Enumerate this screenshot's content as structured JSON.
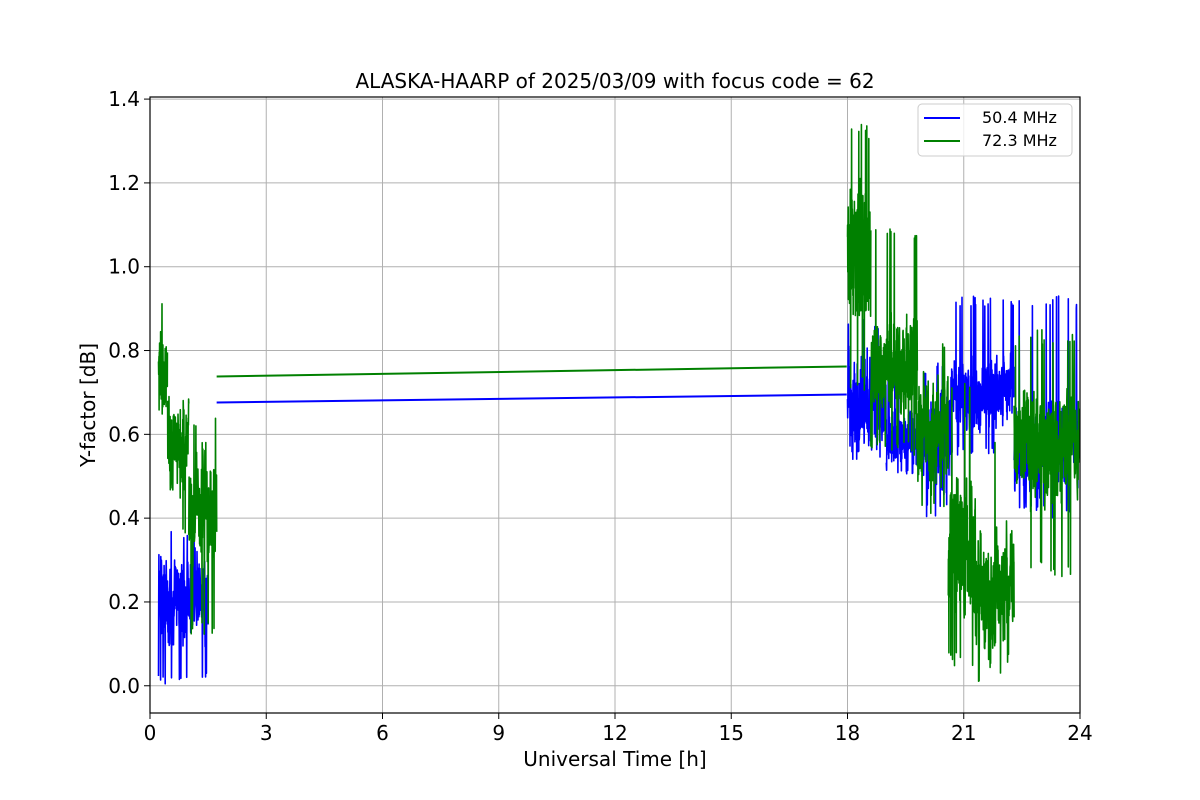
{
  "chart_data": {
    "type": "line",
    "title": "ALASKA-HAARP of 2025/03/09 with focus code = 62",
    "xlabel": "Universal Time [h]",
    "ylabel": "Y-factor [dB]",
    "xlim": [
      0,
      24
    ],
    "ylim": [
      -0.065,
      1.405
    ],
    "x_ticks": [
      0,
      3,
      6,
      9,
      12,
      15,
      18,
      21,
      24
    ],
    "x_tick_labels": [
      "0",
      "3",
      "6",
      "9",
      "12",
      "15",
      "18",
      "21",
      "24"
    ],
    "y_ticks": [
      0.0,
      0.2,
      0.4,
      0.6,
      0.8,
      1.0,
      1.2,
      1.4
    ],
    "y_tick_labels": [
      "0.0",
      "0.2",
      "0.4",
      "0.6",
      "0.8",
      "1.0",
      "1.2",
      "1.4"
    ],
    "grid": true,
    "legend_position": "top-right",
    "series": [
      {
        "name": "50.4 MHz",
        "color": "#0000ff",
        "segments": [
          {
            "x": [
              0.22,
              1.5
            ],
            "base": 0.2,
            "amp": 0.1,
            "min": 0.0,
            "max": 0.38,
            "seed": 11,
            "n": 260
          },
          {
            "x": [
              18.0,
              19.0
            ],
            "base": 0.68,
            "amp": 0.11,
            "min": 0.54,
            "max": 0.88,
            "seed": 12,
            "n": 200
          },
          {
            "x": [
              19.0,
              20.0
            ],
            "base": 0.59,
            "amp": 0.07,
            "min": 0.5,
            "max": 0.75,
            "seed": 13,
            "n": 200
          },
          {
            "x": [
              20.0,
              20.7
            ],
            "base": 0.58,
            "amp": 0.12,
            "min": 0.4,
            "max": 0.77,
            "seed": 14,
            "n": 140
          },
          {
            "x": [
              20.7,
              22.3
            ],
            "base": 0.7,
            "amp": 0.08,
            "min": 0.55,
            "max": 0.93,
            "seed": 15,
            "n": 320
          },
          {
            "x": [
              22.3,
              24.0
            ],
            "base": 0.56,
            "amp": 0.1,
            "min": 0.4,
            "max": 0.93,
            "seed": 16,
            "n": 340
          }
        ],
        "connector": [
          [
            1.72,
            0.676
          ],
          [
            17.98,
            0.695
          ]
        ]
      },
      {
        "name": "72.3 MHz",
        "color": "#008000",
        "segments": [
          {
            "x": [
              0.22,
              0.45
            ],
            "base": 0.75,
            "amp": 0.09,
            "min": 0.64,
            "max": 0.92,
            "seed": 21,
            "n": 60
          },
          {
            "x": [
              0.45,
              1.0
            ],
            "base": 0.57,
            "amp": 0.11,
            "min": 0.36,
            "max": 0.69,
            "seed": 22,
            "n": 120
          },
          {
            "x": [
              1.0,
              1.72
            ],
            "base": 0.42,
            "amp": 0.13,
            "min": 0.12,
            "max": 0.64,
            "seed": 23,
            "n": 150
          },
          {
            "x": [
              18.0,
              18.6
            ],
            "base": 1.03,
            "amp": 0.15,
            "min": 0.7,
            "max": 1.34,
            "seed": 24,
            "n": 160
          },
          {
            "x": [
              18.6,
              19.8
            ],
            "base": 0.77,
            "amp": 0.11,
            "min": 0.55,
            "max": 1.09,
            "seed": 25,
            "n": 260
          },
          {
            "x": [
              19.8,
              20.6
            ],
            "base": 0.6,
            "amp": 0.12,
            "min": 0.4,
            "max": 0.82,
            "seed": 26,
            "n": 180
          },
          {
            "x": [
              20.6,
              21.3
            ],
            "base": 0.33,
            "amp": 0.16,
            "min": 0.04,
            "max": 0.74,
            "seed": 27,
            "n": 180
          },
          {
            "x": [
              21.3,
              22.3
            ],
            "base": 0.22,
            "amp": 0.14,
            "min": 0.0,
            "max": 0.6,
            "seed": 28,
            "n": 220
          },
          {
            "x": [
              22.3,
              24.0
            ],
            "base": 0.57,
            "amp": 0.13,
            "min": 0.26,
            "max": 0.85,
            "seed": 29,
            "n": 340
          }
        ],
        "connector": [
          [
            1.72,
            0.738
          ],
          [
            17.98,
            0.762
          ]
        ]
      }
    ]
  }
}
